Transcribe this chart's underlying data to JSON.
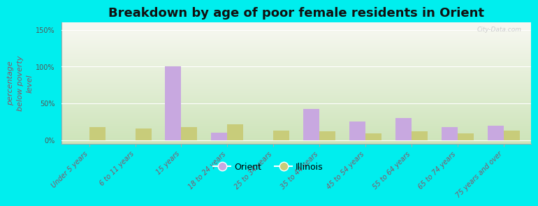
{
  "title": "Breakdown by age of poor female residents in Orient",
  "categories": [
    "Under 5 years",
    "6 to 11 years",
    "15 years",
    "18 to 24 years",
    "25 to 34 years",
    "35 to 44 years",
    "45 to 54 years",
    "55 to 64 years",
    "65 to 74 years",
    "75 years and over"
  ],
  "orient_values": [
    0,
    0,
    100,
    10,
    0,
    42,
    25,
    30,
    18,
    20
  ],
  "illinois_values": [
    18,
    16,
    18,
    22,
    13,
    12,
    9,
    12,
    9,
    13
  ],
  "orient_color": "#c8a8e0",
  "illinois_color": "#c8cc7a",
  "background_color": "#00eeee",
  "plot_bg_top": "#f5f5ee",
  "plot_bg_bottom": "#d4eacc",
  "ylabel": "percentage\nbelow poverty\nlevel",
  "yticks": [
    0,
    50,
    100,
    150
  ],
  "ytick_labels": [
    "0%",
    "50%",
    "100%",
    "150%"
  ],
  "ylim": [
    -5,
    160
  ],
  "bar_width": 0.35,
  "title_fontsize": 13,
  "axis_label_fontsize": 8,
  "tick_fontsize": 7,
  "legend_labels": [
    "Orient",
    "Illinois"
  ],
  "watermark": "City-Data.com"
}
